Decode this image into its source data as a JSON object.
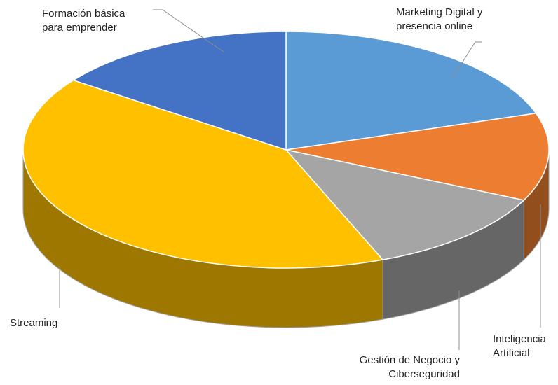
{
  "chart_data": {
    "type": "pie3d",
    "categories": [
      "Marketing Digital y presencia online",
      "Inteligencia Artificial",
      "Gestión de Negocio y Ciberseguridad",
      "Streaming",
      "Formación básica para emprender"
    ],
    "values": [
      20,
      12,
      12,
      41,
      15
    ],
    "colors": [
      "#5b9bd5",
      "#ed7d31",
      "#a5a5a5",
      "#ffc000",
      "#4472c4"
    ]
  }
}
